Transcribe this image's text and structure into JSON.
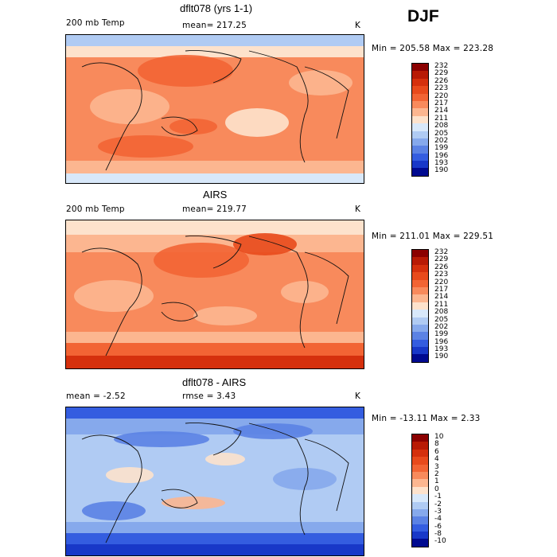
{
  "season": "DJF",
  "units": "K",
  "chart_data": [
    {
      "type": "heatmap",
      "title": "dflt078 (yrs 1-1)",
      "variable": "200 mb Temp",
      "mean_label": "mean= 217.25",
      "range_label": "Min = 205.58 Max = 223.28",
      "min": 205.58,
      "max": 223.28,
      "mean": 217.25,
      "colorbar_labels": [
        "232",
        "229",
        "226",
        "223",
        "220",
        "217",
        "214",
        "211",
        "208",
        "205",
        "202",
        "199",
        "196",
        "193",
        "190"
      ]
    },
    {
      "type": "heatmap",
      "title": "AIRS",
      "variable": "200 mb Temp",
      "mean_label": "mean= 219.77",
      "range_label": "Min = 211.01 Max = 229.51",
      "min": 211.01,
      "max": 229.51,
      "mean": 219.77,
      "colorbar_labels": [
        "232",
        "229",
        "226",
        "223",
        "220",
        "217",
        "214",
        "211",
        "208",
        "205",
        "202",
        "199",
        "196",
        "193",
        "190"
      ]
    },
    {
      "type": "heatmap",
      "title": "dflt078 - AIRS",
      "mean_label": "mean =   -2.52",
      "rmse_label": "rmse =   3.43",
      "range_label": "Min = -13.11 Max =   2.33",
      "min": -13.11,
      "max": 2.33,
      "mean": -2.52,
      "rmse": 3.43,
      "colorbar_labels": [
        "10",
        "8",
        "6",
        "4",
        "3",
        "2",
        "1",
        "0",
        "-1",
        "-2",
        "-3",
        "-4",
        "-6",
        "-8",
        "-10"
      ]
    }
  ],
  "colorbar_colors": [
    "#8b0000",
    "#b81a05",
    "#d5300d",
    "#e84a1c",
    "#f26434",
    "#f88a5c",
    "#fcb690",
    "#fde2cc",
    "#d8e8fa",
    "#b0cbf3",
    "#86a9ec",
    "#5b82e4",
    "#345de0",
    "#1838c8",
    "#000a90"
  ]
}
